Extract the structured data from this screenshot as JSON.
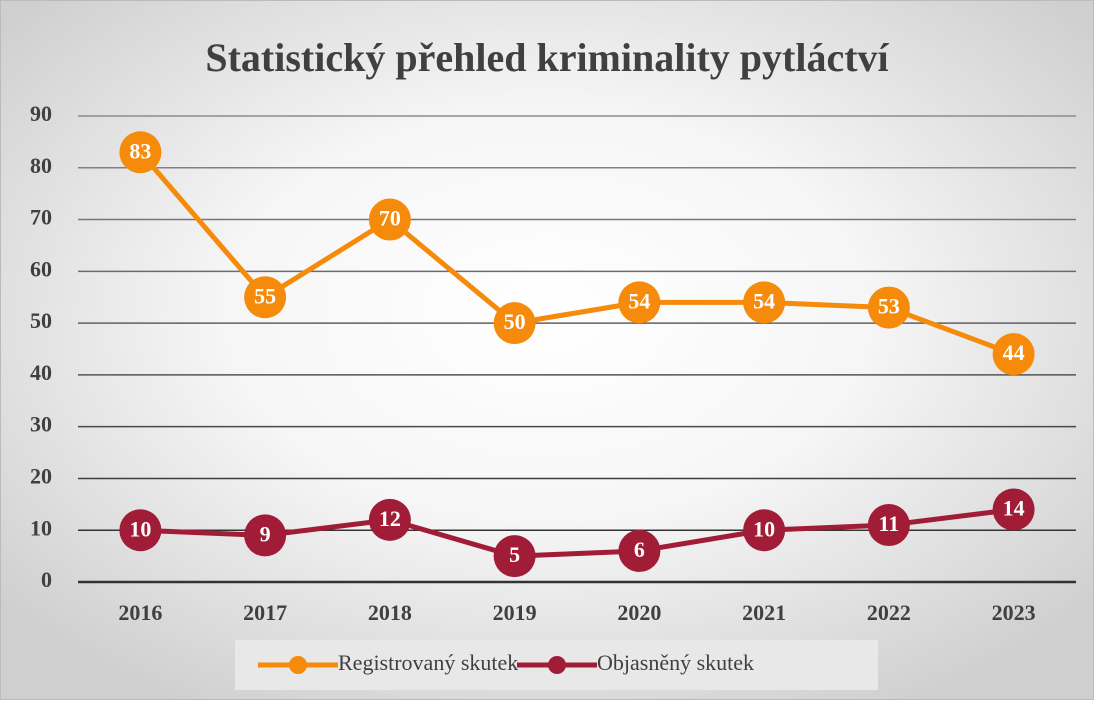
{
  "chart_data": {
    "type": "line",
    "title": "Statistický přehled kriminality pytláctví",
    "categories": [
      "2016",
      "2017",
      "2018",
      "2019",
      "2020",
      "2021",
      "2022",
      "2023"
    ],
    "series": [
      {
        "name": "Registrovaný skutek",
        "color": "#f58a0b",
        "values": [
          83,
          55,
          70,
          50,
          54,
          54,
          53,
          44
        ]
      },
      {
        "name": "Objasněný skutek",
        "color": "#a11d37",
        "values": [
          10,
          9,
          12,
          5,
          6,
          10,
          11,
          14
        ]
      }
    ],
    "ylim": [
      0,
      90
    ],
    "yticks": [
      0,
      10,
      20,
      30,
      40,
      50,
      60,
      70,
      80,
      90
    ],
    "grid": true,
    "legend": "bottom"
  }
}
